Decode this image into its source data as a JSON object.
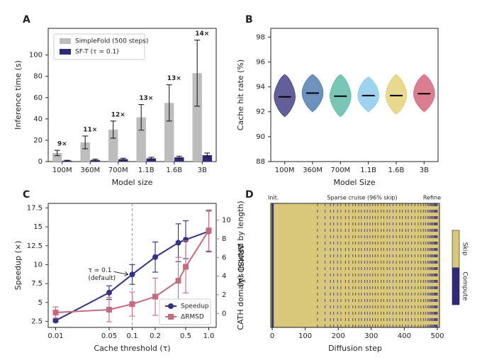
{
  "chart_data": [
    {
      "type": "bar",
      "panel": "A",
      "xlabel": "Model size",
      "ylabel": "Inference time (s)",
      "categories": [
        "100M",
        "360M",
        "700M",
        "1.1B",
        "1.6B",
        "3B"
      ],
      "ylim": [
        0,
        125
      ],
      "yticks": [
        0,
        20,
        40,
        60,
        80,
        100
      ],
      "legend": "upper left",
      "series": [
        {
          "name": "SimpleFold (500 steps)",
          "color": "#bdbdbd",
          "values": [
            8,
            18,
            30,
            41.5,
            55,
            83
          ],
          "errors": [
            2.5,
            6,
            8,
            12,
            17,
            31
          ]
        },
        {
          "name": "SF-T (τ = 0.1)",
          "color": "#2e2a7a",
          "values": [
            0.9,
            1.5,
            2.3,
            3,
            4,
            6
          ],
          "errors": [
            0.3,
            0.8,
            0.8,
            1,
            1,
            2
          ]
        }
      ],
      "speedup_labels": [
        "9×",
        "11×",
        "12×",
        "13×",
        "13×",
        "14×"
      ]
    },
    {
      "type": "strip",
      "panel": "B",
      "xlabel": "Model Size",
      "ylabel": "Cache hit rate (%)",
      "categories": [
        "100M",
        "360M",
        "700M",
        "1.1B",
        "1.6B",
        "3B"
      ],
      "colors": [
        "#2e2a7a",
        "#3d6ea8",
        "#4bb39a",
        "#7ec4ea",
        "#e0cc6a",
        "#d2526c"
      ],
      "values": [
        93.2,
        93.5,
        93.25,
        93.3,
        93.3,
        93.45
      ],
      "ranges": [
        [
          91.6,
          95.0
        ],
        [
          92.0,
          95.0
        ],
        [
          91.6,
          95.0
        ],
        [
          92.0,
          94.8
        ],
        [
          91.8,
          95.0
        ],
        [
          92.0,
          95.0
        ]
      ],
      "ylim": [
        88,
        98.7
      ],
      "yticks": [
        88,
        90,
        92,
        94,
        96,
        98
      ]
    },
    {
      "type": "line",
      "panel": "C",
      "xlabel": "Cache threshold (τ)",
      "ylabel": "Speedup (×)",
      "y2label": "ΔRMSD (Å)",
      "xscale": "log",
      "x": [
        0.01,
        0.05,
        0.1,
        0.2,
        0.4,
        0.5,
        1.0
      ],
      "xlim": [
        0.008,
        1.25
      ],
      "xticks": [
        0.01,
        0.05,
        0.1,
        0.2,
        0.5,
        {
          "value": 1,
          "label": "1.0"
        }
      ],
      "ylim": [
        1.7,
        18.1
      ],
      "yticks": [
        2.5,
        5.0,
        7.5,
        10.0,
        12.5,
        15.0,
        17.5
      ],
      "y2lim": [
        -1.5,
        11.8
      ],
      "y2ticks": [
        0,
        2,
        4,
        6,
        8,
        10
      ],
      "default_threshold": 0.1,
      "annotation": [
        "τ = 0.1",
        "(default)"
      ],
      "legend": "lower right",
      "series": [
        {
          "name": "Speedup",
          "color": "#35308a",
          "marker": "circle",
          "values": [
            2.6,
            6.3,
            8.7,
            11.0,
            12.9,
            13.3,
            14.4
          ],
          "errors": [
            0.2,
            0.9,
            1.3,
            2.0,
            2.5,
            2.5,
            2.7
          ]
        },
        {
          "name": "ΔRMSD",
          "color": "#c66a7f",
          "marker": "square",
          "axis": "y2",
          "values": [
            0.1,
            0.4,
            1.0,
            1.8,
            3.5,
            5.0,
            8.9
          ],
          "errors": [
            0.6,
            1.3,
            1.3,
            2.0,
            2.5,
            2.8,
            2.2
          ]
        }
      ]
    },
    {
      "type": "heatmap",
      "panel": "D",
      "xlabel": "Diffusion step",
      "ylabel": "CATH domains (sorted by length)",
      "xlim": [
        0,
        500
      ],
      "xticks": [
        0,
        100,
        200,
        300,
        400,
        500
      ],
      "phase_labels": [
        "Init.",
        "Sparse cruise (96% skip)",
        "Refine"
      ],
      "series": [
        {
          "name": "Skip",
          "color": "#d9c77a"
        },
        {
          "name": "Compute",
          "color": "#2e2a7a"
        }
      ],
      "compute_steps": [
        0,
        1,
        2,
        3,
        137,
        160,
        176,
        186,
        198,
        208,
        222,
        232,
        244,
        252,
        262,
        270,
        280,
        288,
        296,
        304,
        312,
        320,
        330,
        338,
        348,
        356,
        366,
        376,
        386,
        394,
        404,
        412,
        422,
        432,
        442,
        450,
        458,
        464,
        470,
        474,
        478,
        481,
        484,
        487,
        490,
        492,
        494,
        496,
        498,
        500
      ]
    }
  ]
}
